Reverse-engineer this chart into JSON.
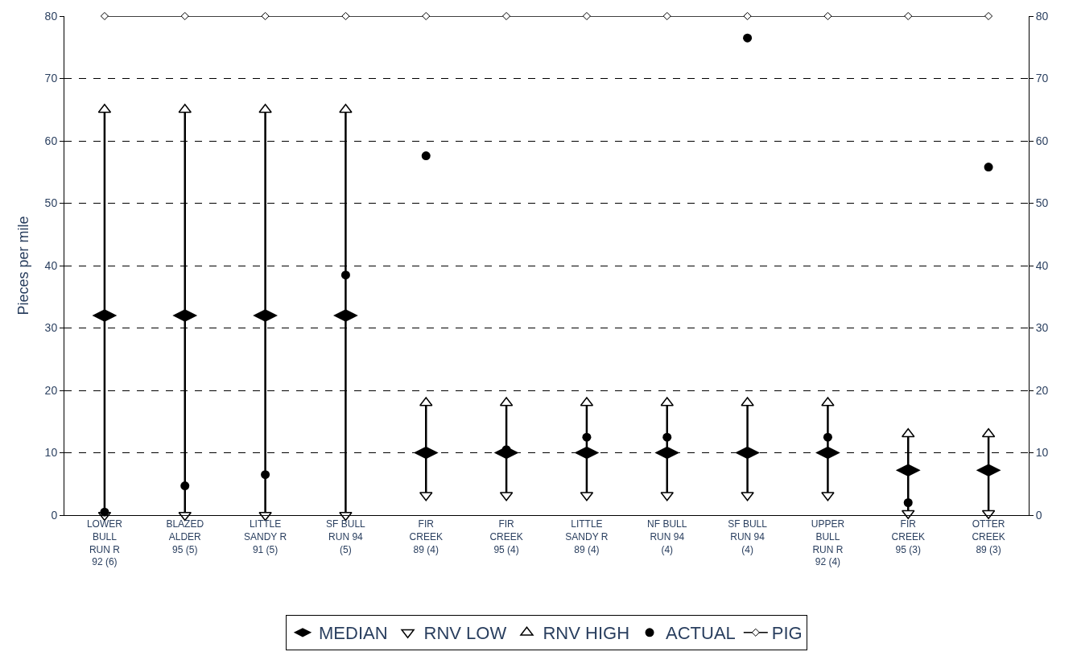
{
  "chart_data": {
    "type": "scatter",
    "ylabel": "Pieces per mile",
    "categories": [
      "LOWER BULL RUN R 92 (6)",
      "BLAZED ALDER 95 (5)",
      "LITTLE SANDY R 91 (5)",
      "SF BULL RUN 94 (5)",
      "FIR CREEK 89 (4)",
      "FIR CREEK 95 (4)",
      "LITTLE SANDY R 89 (4)",
      "NF BULL RUN 94 (4)",
      "SF BULL RUN 94 (4)",
      "UPPER BULL RUN R 92 (4)",
      "FIR CREEK 95 (3)",
      "OTTER CREEK 89 (3)"
    ],
    "series": [
      {
        "name": "MEDIAN",
        "color": "#000000",
        "values": [
          32,
          32,
          32,
          32,
          10,
          10,
          10,
          10,
          10,
          10,
          7.2,
          7.2
        ]
      },
      {
        "name": "RNV LOW",
        "marker": "triangle-down",
        "color": "#000000",
        "values": [
          0,
          0,
          0,
          0,
          3.2,
          3.2,
          3.2,
          3.2,
          3.2,
          3.2,
          0.3,
          0.3
        ]
      },
      {
        "name": "RNV HIGH",
        "marker": "triangle",
        "color": "#000000",
        "values": [
          65,
          65,
          65,
          65,
          18,
          18,
          18,
          18,
          18,
          18,
          13,
          13
        ]
      },
      {
        "name": "ACTUAL",
        "marker": "circle",
        "color": "#000000",
        "values": [
          0.5,
          4.7,
          6.5,
          38.5,
          57.6,
          10.5,
          12.5,
          12.5,
          76.5,
          12.5,
          2,
          55.8
        ]
      },
      {
        "name": "PIG",
        "type": "line",
        "marker": "diamond",
        "color": "#000000",
        "values": [
          80,
          80,
          80,
          80,
          80,
          80,
          80,
          80,
          80,
          80,
          80,
          80
        ]
      }
    ],
    "ylim": [
      0,
      80
    ],
    "yticks": [
      0,
      10,
      20,
      30,
      40,
      50,
      60,
      70,
      80
    ],
    "y2lim": [
      0,
      80
    ],
    "y2ticks": [
      0,
      10,
      20,
      30,
      40,
      50,
      60,
      70,
      80
    ],
    "grid": "y",
    "legend": "bottom"
  }
}
